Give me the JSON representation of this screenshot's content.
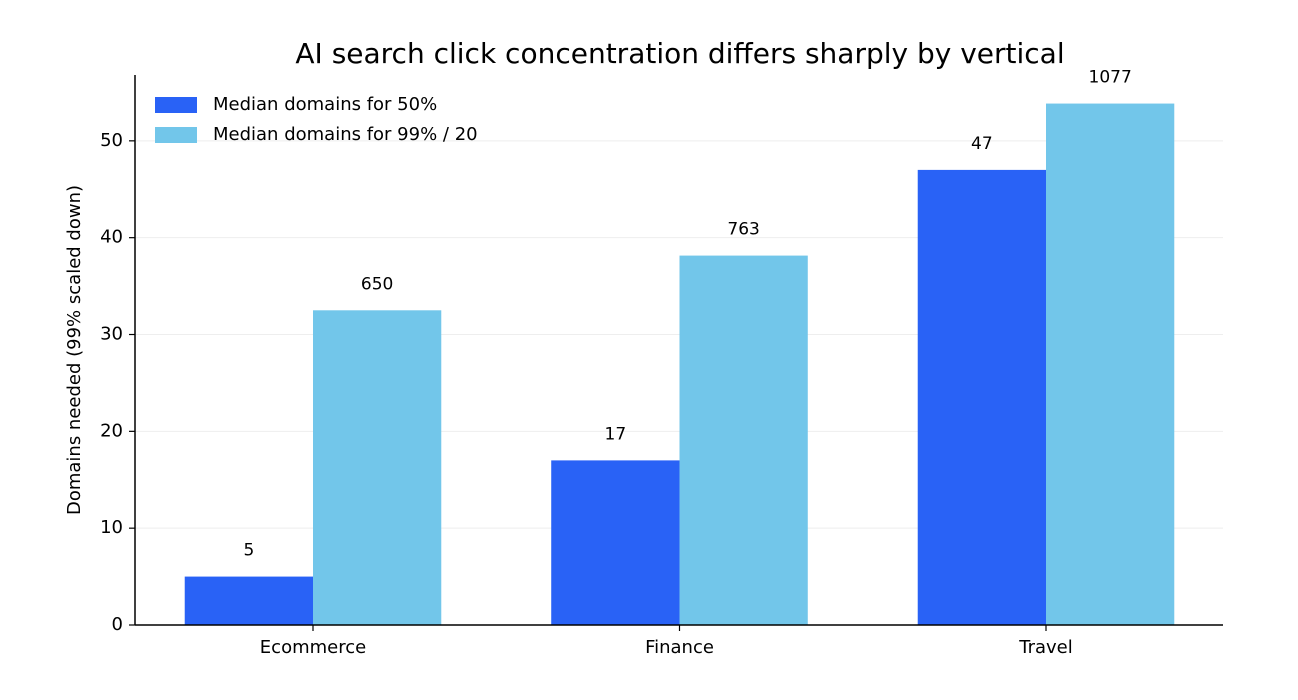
{
  "chart_data": {
    "type": "bar",
    "title": "AI search click concentration differs sharply by vertical",
    "y_label": "Domains needed (99% scaled down)",
    "categories": [
      "Ecommerce",
      "Finance",
      "Travel"
    ],
    "series": [
      {
        "name": "Median domains for 50%",
        "color": "#2962f6",
        "values": [
          5,
          17,
          47
        ]
      },
      {
        "name": "Median domains for 99% / 20",
        "color": "#72c6ea",
        "values": [
          32.5,
          38.15,
          53.85
        ],
        "value_labels": [
          "650",
          "763",
          "1077"
        ]
      }
    ],
    "ylim": [
      0,
      56.8
    ],
    "yticks": [
      0,
      10,
      20,
      30,
      40,
      50
    ],
    "grid": true,
    "legend": "upper-left"
  }
}
